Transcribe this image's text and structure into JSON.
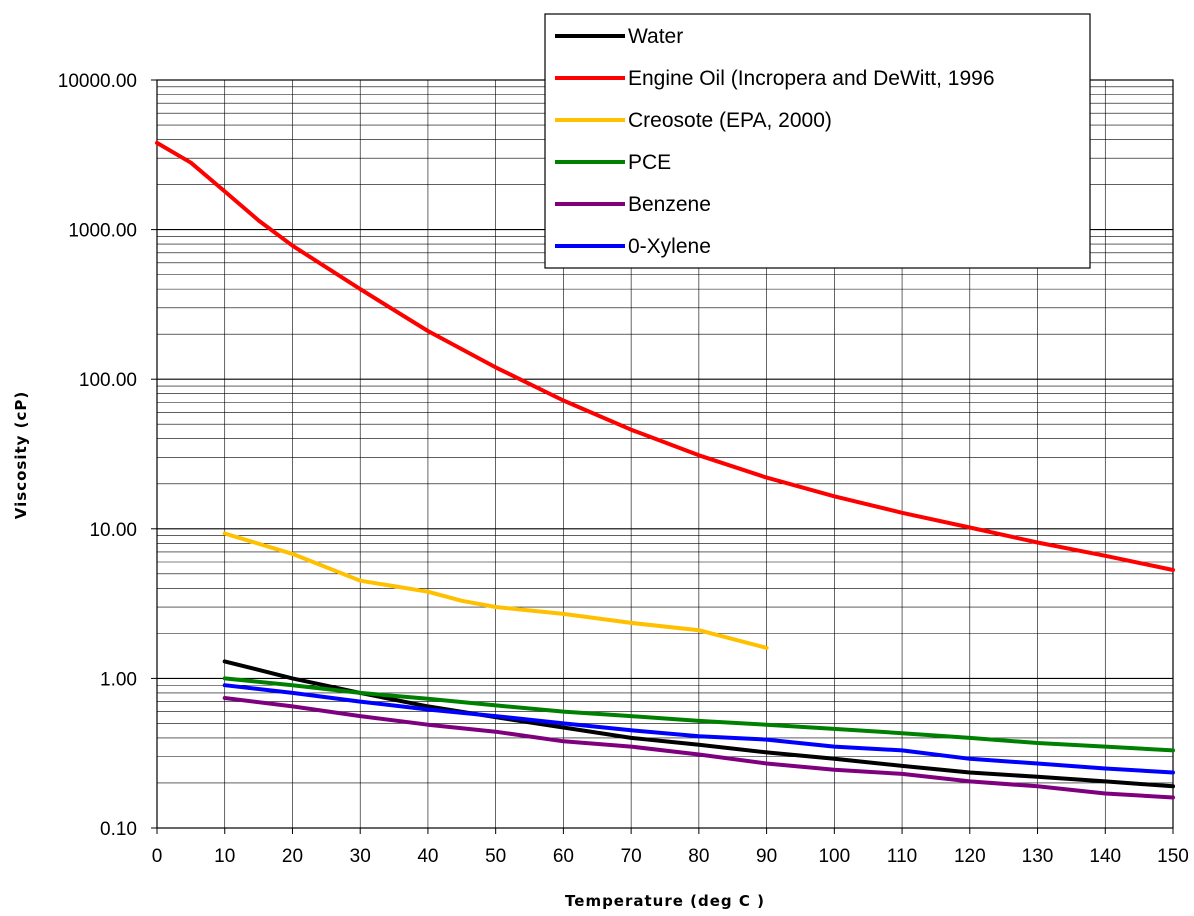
{
  "chart_data": {
    "type": "line",
    "xlabel": "Temperature (deg C )",
    "ylabel": "Viscosity (cP)",
    "xlim": [
      0,
      150
    ],
    "ylim": [
      0.1,
      10000
    ],
    "y_scale": "log",
    "grid": true,
    "legend_position": "top-right",
    "x_ticks": [
      "0",
      "10",
      "20",
      "30",
      "40",
      "50",
      "60",
      "70",
      "80",
      "90",
      "100",
      "110",
      "120",
      "130",
      "140",
      "150"
    ],
    "y_ticks": [
      "0.10",
      "1.00",
      "10.00",
      "100.00",
      "1000.00",
      "10000.00"
    ],
    "series": [
      {
        "name": "Water",
        "color": "#000000",
        "points": [
          [
            10,
            1.3
          ],
          [
            20,
            1.0
          ],
          [
            30,
            0.8
          ],
          [
            40,
            0.65
          ],
          [
            50,
            0.55
          ],
          [
            60,
            0.47
          ],
          [
            70,
            0.4
          ],
          [
            80,
            0.36
          ],
          [
            90,
            0.32
          ],
          [
            100,
            0.29
          ],
          [
            110,
            0.26
          ],
          [
            120,
            0.235
          ],
          [
            130,
            0.22
          ],
          [
            140,
            0.205
          ],
          [
            150,
            0.19
          ]
        ]
      },
      {
        "name": "Engine Oil (Incropera and DeWitt, 1996",
        "color": "#ff0000",
        "points": [
          [
            0,
            3800
          ],
          [
            5,
            2800
          ],
          [
            10,
            1800
          ],
          [
            15,
            1150
          ],
          [
            20,
            780
          ],
          [
            30,
            400
          ],
          [
            40,
            210
          ],
          [
            50,
            120
          ],
          [
            60,
            72
          ],
          [
            70,
            46
          ],
          [
            80,
            31
          ],
          [
            90,
            22
          ],
          [
            100,
            16.5
          ],
          [
            110,
            12.8
          ],
          [
            120,
            10.2
          ],
          [
            130,
            8.1
          ],
          [
            140,
            6.6
          ],
          [
            150,
            5.3
          ]
        ]
      },
      {
        "name": "Creosote (EPA, 2000)",
        "color": "#ffc000",
        "points": [
          [
            10,
            9.3
          ],
          [
            20,
            6.8
          ],
          [
            30,
            4.5
          ],
          [
            40,
            3.8
          ],
          [
            45,
            3.3
          ],
          [
            50,
            3.0
          ],
          [
            60,
            2.7
          ],
          [
            70,
            2.35
          ],
          [
            80,
            2.1
          ],
          [
            90,
            1.6
          ]
        ]
      },
      {
        "name": "PCE",
        "color": "#008000",
        "points": [
          [
            10,
            1.0
          ],
          [
            20,
            0.9
          ],
          [
            30,
            0.8
          ],
          [
            40,
            0.73
          ],
          [
            50,
            0.66
          ],
          [
            60,
            0.6
          ],
          [
            70,
            0.56
          ],
          [
            80,
            0.52
          ],
          [
            90,
            0.49
          ],
          [
            100,
            0.46
          ],
          [
            110,
            0.43
          ],
          [
            120,
            0.4
          ],
          [
            130,
            0.37
          ],
          [
            140,
            0.35
          ],
          [
            150,
            0.33
          ]
        ]
      },
      {
        "name": "Benzene",
        "color": "#7f007f",
        "points": [
          [
            10,
            0.74
          ],
          [
            20,
            0.65
          ],
          [
            30,
            0.56
          ],
          [
            40,
            0.49
          ],
          [
            50,
            0.44
          ],
          [
            60,
            0.38
          ],
          [
            70,
            0.35
          ],
          [
            80,
            0.31
          ],
          [
            90,
            0.27
          ],
          [
            100,
            0.245
          ],
          [
            110,
            0.23
          ],
          [
            120,
            0.205
          ],
          [
            130,
            0.19
          ],
          [
            140,
            0.17
          ],
          [
            150,
            0.16
          ]
        ]
      },
      {
        "name": "0-Xylene",
        "color": "#0000ff",
        "points": [
          [
            10,
            0.9
          ],
          [
            20,
            0.8
          ],
          [
            30,
            0.7
          ],
          [
            40,
            0.62
          ],
          [
            50,
            0.56
          ],
          [
            60,
            0.5
          ],
          [
            70,
            0.45
          ],
          [
            80,
            0.41
          ],
          [
            90,
            0.39
          ],
          [
            100,
            0.35
          ],
          [
            110,
            0.33
          ],
          [
            120,
            0.29
          ],
          [
            130,
            0.27
          ],
          [
            140,
            0.25
          ],
          [
            150,
            0.235
          ]
        ]
      }
    ]
  }
}
